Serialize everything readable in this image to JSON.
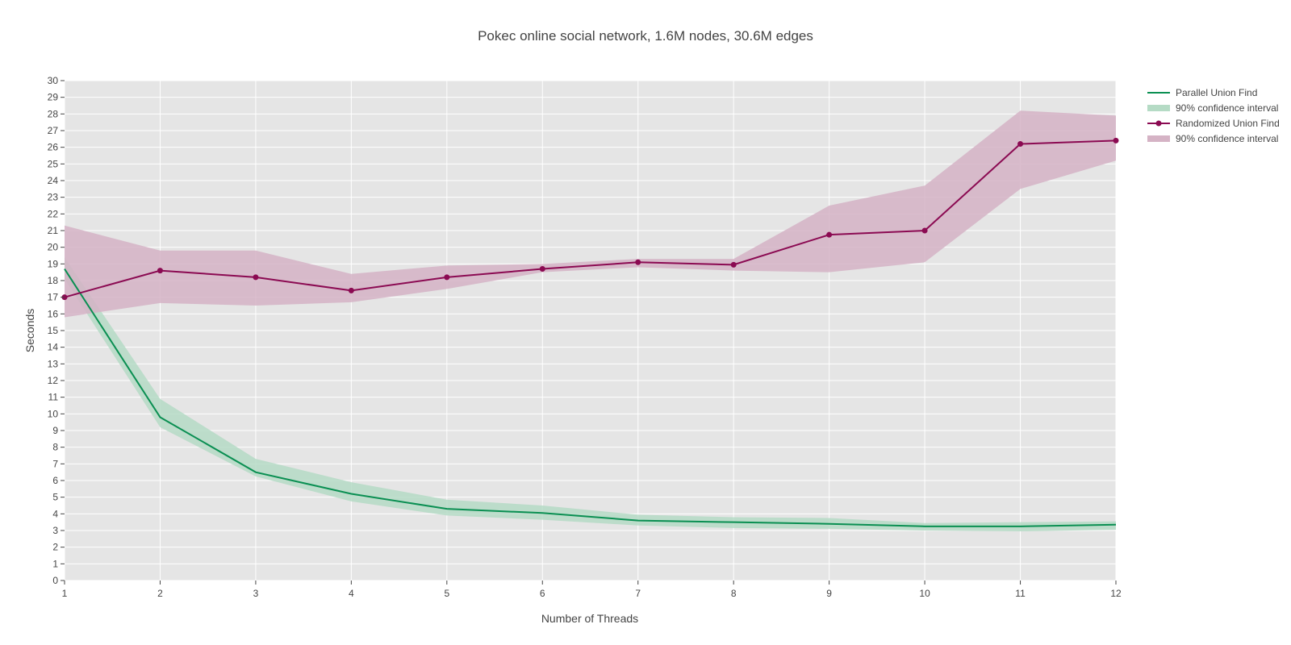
{
  "chart_data": {
    "type": "line",
    "title": "Pokec online social network, 1.6M nodes, 30.6M edges",
    "xlabel": "Number of Threads",
    "ylabel": "Seconds",
    "xlim": [
      1,
      12
    ],
    "ylim": [
      0,
      30
    ],
    "x": [
      1,
      2,
      3,
      4,
      5,
      6,
      7,
      8,
      9,
      10,
      11,
      12
    ],
    "x_ticks": [
      "1",
      "2",
      "3",
      "4",
      "5",
      "6",
      "7",
      "8",
      "9",
      "10",
      "11",
      "12"
    ],
    "y_ticks": [
      "0",
      "1",
      "2",
      "3",
      "4",
      "5",
      "6",
      "7",
      "8",
      "9",
      "10",
      "11",
      "12",
      "13",
      "14",
      "15",
      "16",
      "17",
      "18",
      "19",
      "20",
      "21",
      "22",
      "23",
      "24",
      "25",
      "26",
      "27",
      "28",
      "29",
      "30"
    ],
    "grid": true,
    "legend_position": "top-right",
    "background": "#e5e5e5",
    "series": [
      {
        "name": "Parallel Union Find",
        "color": "#0a8f52",
        "markers": false,
        "values": [
          18.7,
          9.8,
          6.5,
          5.2,
          4.3,
          4.05,
          3.6,
          3.5,
          3.4,
          3.25,
          3.25,
          3.35
        ],
        "ci_name": "90% confidence interval",
        "ci_color": "#b5dbc5",
        "ci_lower": [
          18.1,
          9.2,
          6.25,
          4.75,
          3.9,
          3.65,
          3.3,
          3.15,
          3.1,
          3.0,
          2.95,
          3.05
        ],
        "ci_upper": [
          19.4,
          10.9,
          7.3,
          5.9,
          4.85,
          4.5,
          3.95,
          3.8,
          3.75,
          3.45,
          3.5,
          3.55
        ]
      },
      {
        "name": "Randomized Union Find",
        "color": "#8b0a52",
        "markers": true,
        "values": [
          17.0,
          18.6,
          18.2,
          17.4,
          18.2,
          18.7,
          19.1,
          18.95,
          20.75,
          21.0,
          26.2,
          26.4
        ],
        "ci_name": "90% confidence interval",
        "ci_color": "#d5b3c5",
        "ci_lower": [
          15.8,
          16.65,
          16.5,
          16.7,
          17.5,
          18.5,
          18.8,
          18.6,
          18.5,
          19.1,
          23.5,
          25.2
        ],
        "ci_upper": [
          21.3,
          19.8,
          19.8,
          18.4,
          18.9,
          19.0,
          19.3,
          19.3,
          22.5,
          23.7,
          28.2,
          27.9
        ]
      }
    ]
  }
}
